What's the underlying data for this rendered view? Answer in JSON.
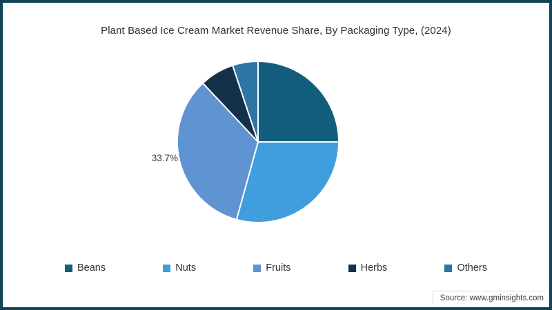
{
  "header": {
    "title": "Plant Based Ice Cream Market Revenue Share, By Packaging Type, (2024)"
  },
  "chart_data": {
    "type": "pie",
    "title": "Plant Based Ice Cream Market Revenue Share, By Packaging Type, (2024)",
    "categories": [
      "Beans",
      "Nuts",
      "Fruits",
      "Herbs",
      "Others"
    ],
    "values": [
      25.0,
      29.3,
      33.7,
      6.9,
      5.1
    ],
    "unit": "%",
    "colors": [
      "#145e7d",
      "#3f9edb",
      "#6093d1",
      "#14314a",
      "#2c75a4"
    ],
    "start_angle_deg": 0,
    "direction": "clockwise",
    "data_label": {
      "category": "Fruits",
      "text": "33.7%"
    },
    "legend_position": "bottom",
    "slice_separator_color": "#ffffff"
  },
  "footer": {
    "source": "Source: www.gminsights.com"
  }
}
